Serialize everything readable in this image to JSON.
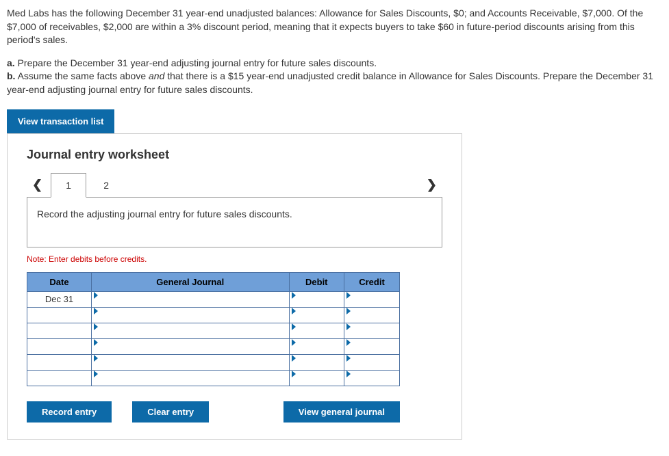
{
  "problem": {
    "p1": "Med Labs has the following December 31 year-end unadjusted balances: Allowance for Sales Discounts, $0; and Accounts Receivable, $7,000. Of the $7,000 of receivables, $2,000 are within a 3% discount period, meaning that it expects buyers to take $60 in future-period discounts arising from this period's sales.",
    "a_label": "a.",
    "a_text": " Prepare the December 31 year-end adjusting journal entry for future sales discounts.",
    "b_label": "b.",
    "b_text_pre": " Assume the same facts above ",
    "b_and": "and",
    "b_text_post": " that there is a $15 year-end unadjusted credit balance in Allowance for Sales Discounts. Prepare the December 31 year-end adjusting journal entry for future sales discounts."
  },
  "buttons": {
    "view_transaction": "View transaction list",
    "record_entry": "Record entry",
    "clear_entry": "Clear entry",
    "view_general_journal": "View general journal"
  },
  "worksheet": {
    "title": "Journal entry worksheet",
    "tab1": "1",
    "tab2": "2",
    "instruction": "Record the adjusting journal entry for future sales discounts.",
    "note": "Note: Enter debits before credits.",
    "headers": {
      "date": "Date",
      "gj": "General Journal",
      "debit": "Debit",
      "credit": "Credit"
    },
    "rows": [
      {
        "date": "Dec 31",
        "gj": "",
        "debit": "",
        "credit": ""
      },
      {
        "date": "",
        "gj": "",
        "debit": "",
        "credit": ""
      },
      {
        "date": "",
        "gj": "",
        "debit": "",
        "credit": ""
      },
      {
        "date": "",
        "gj": "",
        "debit": "",
        "credit": ""
      },
      {
        "date": "",
        "gj": "",
        "debit": "",
        "credit": ""
      },
      {
        "date": "",
        "gj": "",
        "debit": "",
        "credit": ""
      }
    ]
  },
  "colors": {
    "button_bg": "#0d6aa8",
    "th_bg": "#6f9fd8",
    "border": "#4a6fa0",
    "note": "#c00"
  }
}
